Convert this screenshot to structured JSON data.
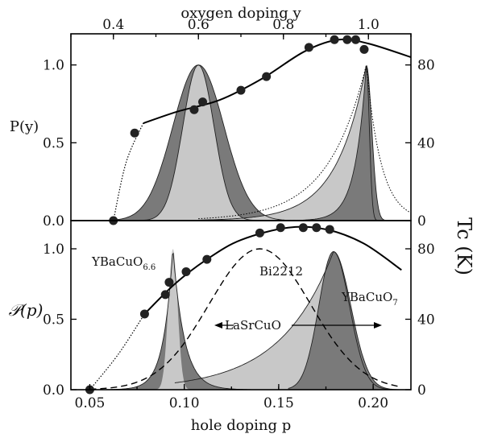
{
  "chart_data": [
    {
      "type": "area",
      "panel": "top",
      "top_axis": {
        "label": "oxygen doping y",
        "range": [
          0.3,
          1.1
        ],
        "ticks": [
          "0.4",
          "0.6",
          "0.8",
          "1.0"
        ]
      },
      "ylabel": "P(y)",
      "ylim": [
        0,
        1.2
      ],
      "yticks": [
        "0.0",
        "0.5",
        "1.0"
      ],
      "right_axis": {
        "label": "Tc (K)",
        "range": [
          0,
          96
        ],
        "ticks": [
          "0",
          "40",
          "80"
        ]
      },
      "tc_points": [
        {
          "y": 0.4,
          "tc": 0
        },
        {
          "y": 0.45,
          "tc": 45
        },
        {
          "y": 0.59,
          "tc": 57
        },
        {
          "y": 0.61,
          "tc": 61
        },
        {
          "y": 0.7,
          "tc": 67
        },
        {
          "y": 0.76,
          "tc": 74
        },
        {
          "y": 0.86,
          "tc": 89
        },
        {
          "y": 0.92,
          "tc": 93
        },
        {
          "y": 0.95,
          "tc": 93
        },
        {
          "y": 0.97,
          "tc": 93
        },
        {
          "y": 0.99,
          "tc": 88
        }
      ],
      "distributions": [
        {
          "peak_y": 0.6,
          "peak_value": 1.0,
          "shape": "gaussian"
        },
        {
          "peak_y": 0.995,
          "peak_value": 1.0,
          "shape": "asymmetric"
        }
      ]
    },
    {
      "type": "area",
      "panel": "bottom",
      "xlabel": "hole doping p",
      "xlim": [
        0.04,
        0.22
      ],
      "xticks": [
        "0.05",
        "0.10",
        "0.15",
        "0.20"
      ],
      "ylabel": "𝒫(p)",
      "ylim": [
        0,
        1.2
      ],
      "yticks": [
        "0.0",
        "0.5",
        "1.0"
      ],
      "right_axis": {
        "label": "Tc (K)",
        "range": [
          0,
          96
        ],
        "ticks": [
          "0",
          "40",
          "80"
        ]
      },
      "tc_points": [
        {
          "p": 0.05,
          "tc": 0
        },
        {
          "p": 0.079,
          "tc": 43
        },
        {
          "p": 0.09,
          "tc": 54
        },
        {
          "p": 0.092,
          "tc": 61
        },
        {
          "p": 0.101,
          "tc": 67
        },
        {
          "p": 0.112,
          "tc": 74
        },
        {
          "p": 0.14,
          "tc": 89
        },
        {
          "p": 0.151,
          "tc": 92
        },
        {
          "p": 0.163,
          "tc": 92
        },
        {
          "p": 0.17,
          "tc": 92
        },
        {
          "p": 0.177,
          "tc": 91
        }
      ],
      "annotations": {
        "ybco66": "YBaCuO",
        "ybco66_sub": "6.6",
        "ybco7": "YBaCuO",
        "ybco7_sub": "7",
        "bi2212": "Bi2212",
        "lasrcuo": "LaSrCuO"
      },
      "distributions": [
        {
          "peak_p": 0.094,
          "peak_value": 1.0,
          "label": "YBaCuO6.6"
        },
        {
          "peak_p": 0.179,
          "peak_value": 0.98,
          "label": "YBaCuO7"
        },
        {
          "peak_p": 0.14,
          "peak_value": 1.0,
          "label": "Bi2212",
          "style": "dashed"
        }
      ]
    }
  ],
  "colors": {
    "dark_fill": "#7a7a7a",
    "light_fill": "#c8c8c8",
    "line": "#000000"
  }
}
